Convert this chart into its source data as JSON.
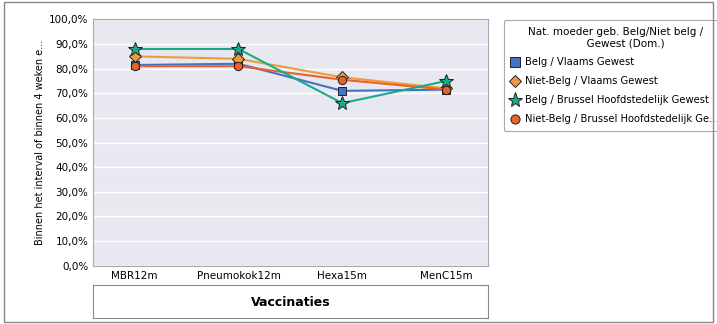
{
  "categories": [
    "MBR12m",
    "Pneumokok12m",
    "Hexa15m",
    "MenC15m"
  ],
  "series": [
    {
      "label": "Belg / Vlaams Gewest",
      "values": [
        81.5,
        82.0,
        71.0,
        71.5
      ],
      "color": "#4472C4",
      "marker": "s",
      "markersize": 6,
      "linewidth": 1.5,
      "zorder": 3
    },
    {
      "label": "Niet-Belg / Vlaams Gewest",
      "values": [
        85.0,
        84.0,
        76.5,
        72.0
      ],
      "color": "#ED9B3F",
      "marker": "D",
      "markersize": 6,
      "linewidth": 1.5,
      "zorder": 3
    },
    {
      "label": "Belg / Brussel Hoofdstedelijk Gewest",
      "values": [
        88.0,
        88.0,
        66.0,
        75.0
      ],
      "color": "#1AAA8A",
      "marker": "*",
      "markersize": 10,
      "linewidth": 1.5,
      "zorder": 4
    },
    {
      "label": "Niet-Belg / Brussel Hoofdstedelijk Ge...",
      "values": [
        81.0,
        81.0,
        75.5,
        71.5
      ],
      "color": "#E8622A",
      "marker": "o",
      "markersize": 6,
      "linewidth": 1.5,
      "zorder": 3
    }
  ],
  "ylabel": "Binnen het interval of binnen 4 weken e...",
  "xlabel": "Vaccinaties",
  "legend_title": "Nat. moeder geb. Belg/Niet belg /\n      Gewest (Dom.)",
  "ylim": [
    0,
    100
  ],
  "yticks": [
    0,
    10,
    20,
    30,
    40,
    50,
    60,
    70,
    80,
    90,
    100
  ],
  "plot_bg_color": "#E8E8F0",
  "fig_bg_color": "#FFFFFF",
  "grid_color": "#FFFFFF",
  "border_color": "#AAAAAA"
}
